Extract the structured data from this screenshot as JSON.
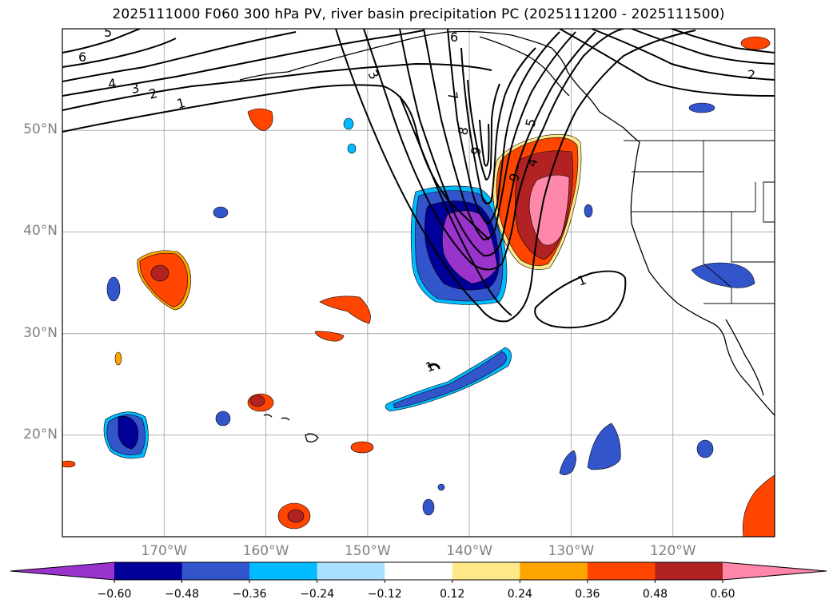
{
  "title": "2025111000 F060 300 hPa PV, river basin precipitation PC (2025111200 - 2025111500)",
  "map": {
    "projection": "equirectangular",
    "lon_range": [
      -180,
      -110
    ],
    "lat_range": [
      10,
      60
    ],
    "gridlines": true,
    "lat_ticks": [
      {
        "value": 20,
        "label": "20°N"
      },
      {
        "value": 30,
        "label": "30°N"
      },
      {
        "value": 40,
        "label": "40°N"
      },
      {
        "value": 50,
        "label": "50°N"
      }
    ],
    "lon_ticks": [
      {
        "value": -170,
        "label": "170°W"
      },
      {
        "value": -160,
        "label": "160°W"
      },
      {
        "value": -150,
        "label": "150°W"
      },
      {
        "value": -140,
        "label": "140°W"
      },
      {
        "value": -130,
        "label": "130°W"
      },
      {
        "value": -120,
        "label": "120°W"
      }
    ],
    "contour_labels": [
      "1",
      "2",
      "3",
      "4",
      "5",
      "6",
      "7",
      "8",
      "9"
    ],
    "colors": {
      "contour": "#000000",
      "coast": "#000000",
      "grid": "#b0b0b0"
    }
  },
  "colorbar": {
    "extend": "both",
    "colors": [
      "#9933cc",
      "#000099",
      "#3355cc",
      "#00bbff",
      "#aae0ff",
      "#ffffff",
      "#ffe88a",
      "#ffa500",
      "#ff4500",
      "#b22222",
      "#ff88aa"
    ],
    "ticks": [
      "−0.60",
      "−0.48",
      "−0.36",
      "−0.24",
      "−0.12",
      "0.12",
      "0.24",
      "0.36",
      "0.48",
      "0.60"
    ]
  }
}
